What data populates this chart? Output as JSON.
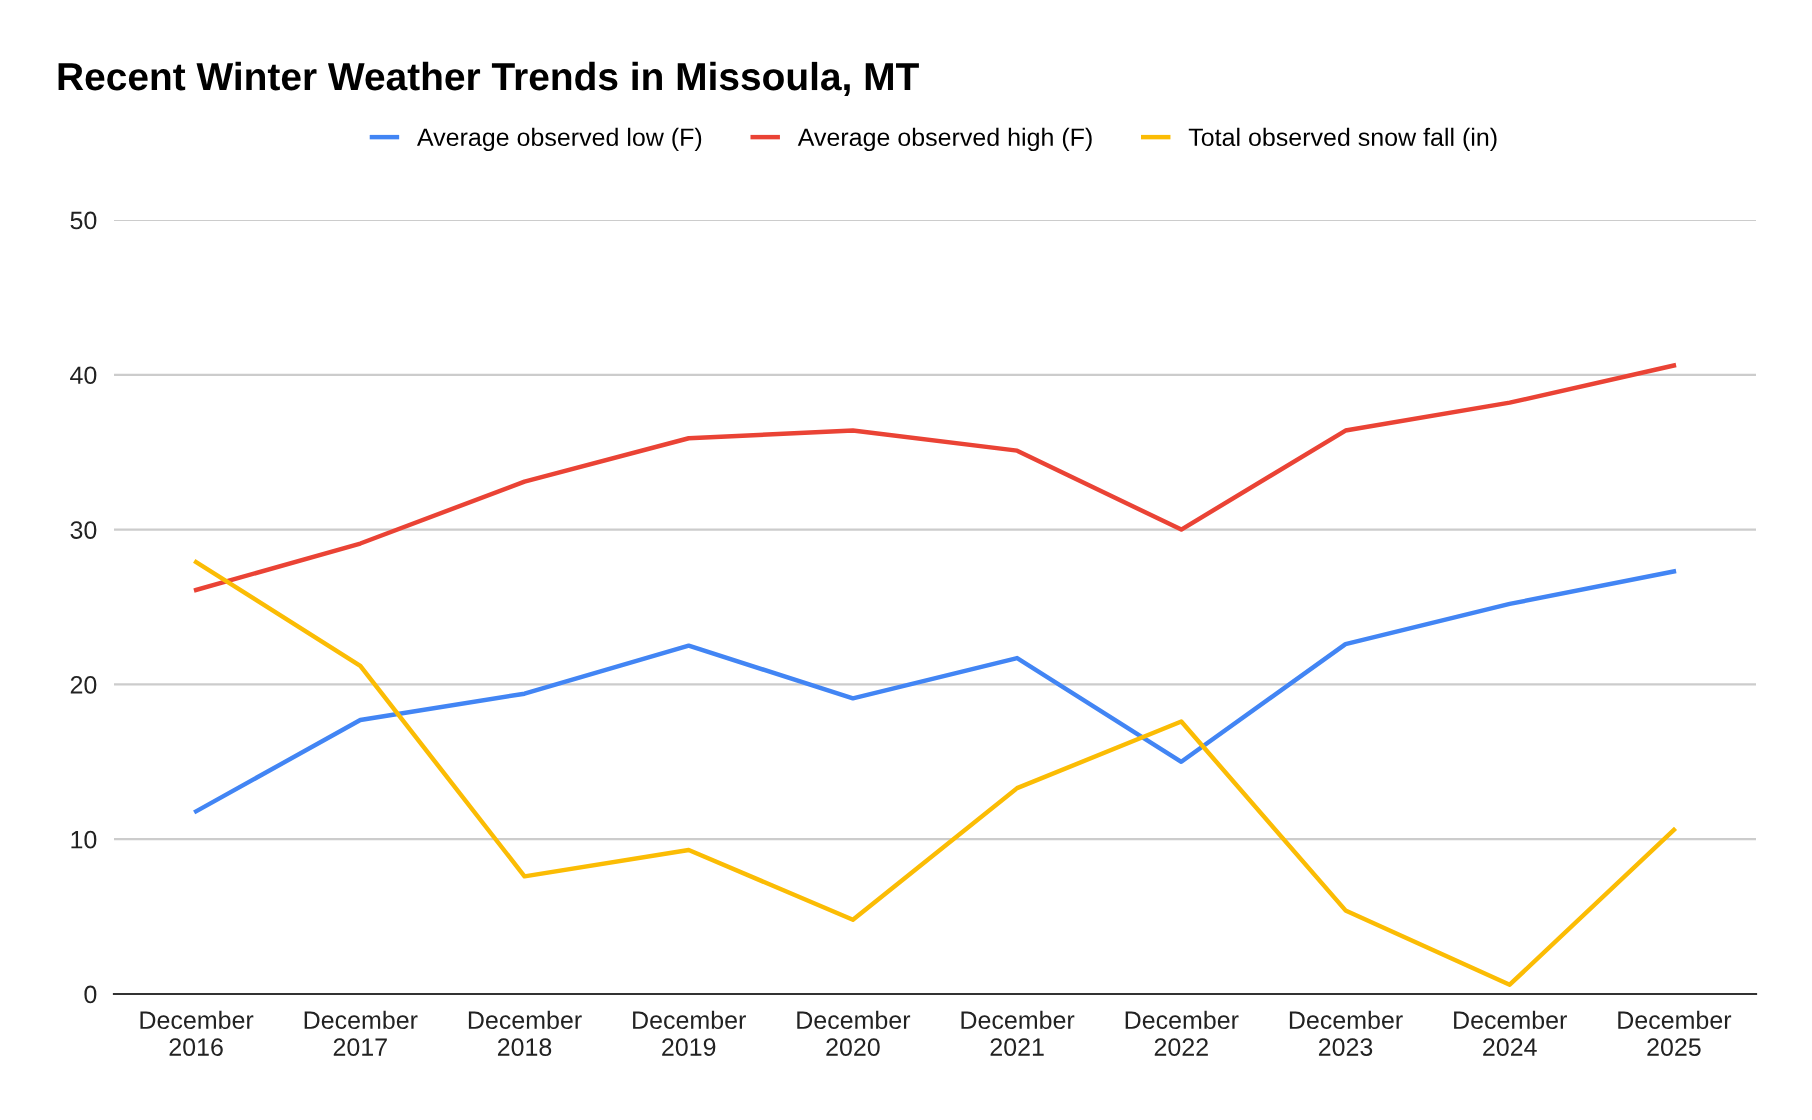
{
  "chart_data": {
    "type": "line",
    "title": "Recent Winter Weather Trends in Missoula, MT",
    "categories": [
      "December\n2016",
      "December\n2017",
      "December\n2018",
      "December\n2019",
      "December\n2020",
      "December\n2021",
      "December\n2022",
      "December\n2023",
      "December\n2024",
      "December\n2025"
    ],
    "series": [
      {
        "name": "Average observed low (F)",
        "color": "#4285f4",
        "values": [
          11.8,
          17.7,
          19.4,
          22.5,
          19.1,
          21.7,
          15.0,
          22.6,
          25.2,
          27.3
        ]
      },
      {
        "name": "Average observed high (F)",
        "color": "#ea4335",
        "values": [
          26.1,
          29.1,
          33.1,
          35.9,
          36.4,
          35.1,
          30.0,
          36.4,
          38.2,
          40.6
        ]
      },
      {
        "name": "Total observed snow fall (in)",
        "color": "#fbbc04",
        "values": [
          27.9,
          21.2,
          7.6,
          9.3,
          4.8,
          13.3,
          17.6,
          5.4,
          0.6,
          10.6
        ]
      }
    ],
    "ylim": [
      0,
      50
    ],
    "yticks": [
      0,
      10,
      20,
      30,
      40,
      50
    ],
    "grid": "y",
    "legend": "top",
    "marker": "none",
    "line_style": "solid"
  }
}
